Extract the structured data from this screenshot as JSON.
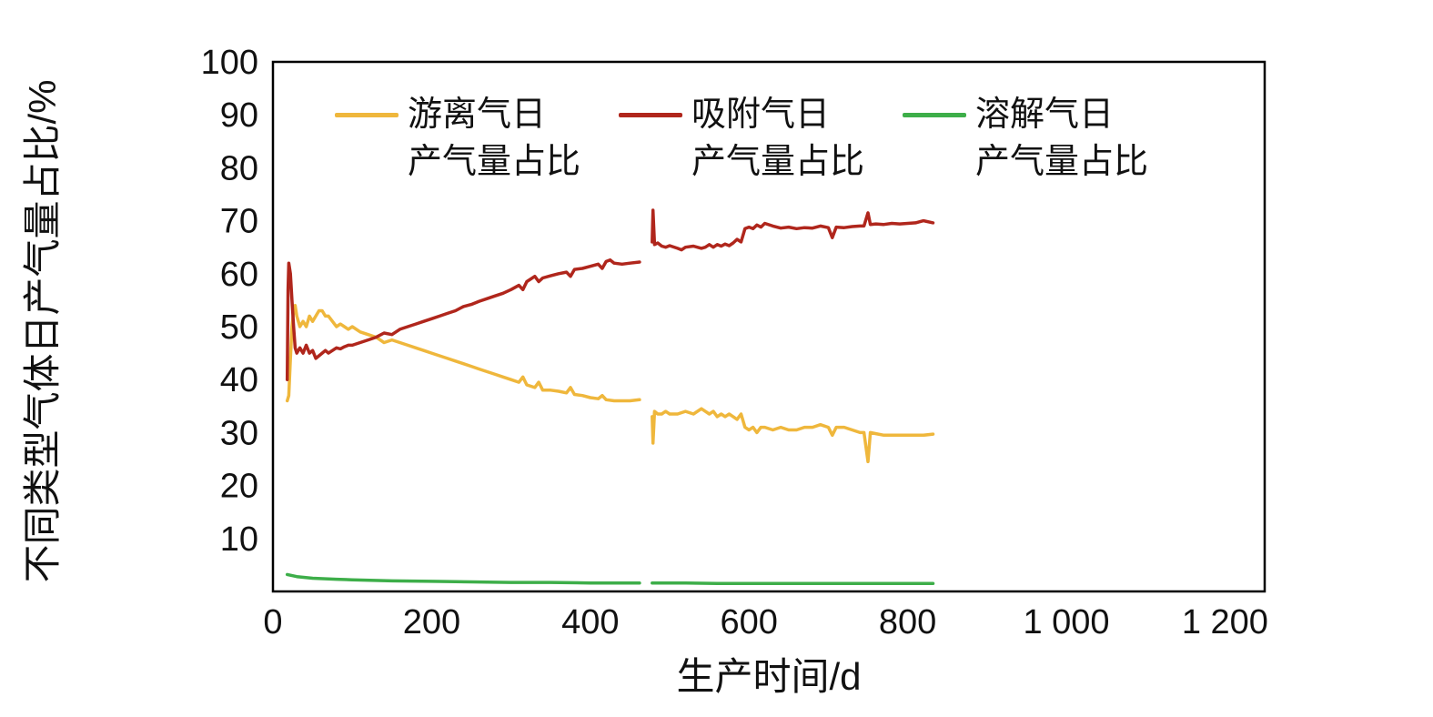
{
  "figure": {
    "background": "#ffffff",
    "text_color": "#111111",
    "axis_color": "#000000"
  },
  "chart_data": {
    "type": "line",
    "title": "",
    "xlabel": "生产时间/d",
    "ylabel": "不同类型气体日产气量占比/%",
    "xlim": [
      0,
      1250
    ],
    "ylim": [
      0,
      100
    ],
    "grid": false,
    "legend_position": "top-inside",
    "x_ticks": [
      0,
      200,
      400,
      600,
      800,
      1000,
      1200
    ],
    "x_tick_labels": [
      "0",
      "200",
      "400",
      "600",
      "800",
      "1 000",
      "1 200"
    ],
    "y_ticks": [
      10,
      20,
      30,
      40,
      50,
      60,
      70,
      80,
      90,
      100
    ],
    "y_tick_labels": [
      "10",
      "20",
      "30",
      "40",
      "50",
      "60",
      "70",
      "80",
      "90",
      "100"
    ],
    "series": [
      {
        "key": "free-gas",
        "name": "游离气日\n产气量占比",
        "color": "#EFB73C",
        "segments": [
          [
            [
              18,
              36
            ],
            [
              20,
              37
            ],
            [
              22,
              44
            ],
            [
              24,
              50
            ],
            [
              26,
              53
            ],
            [
              28,
              54
            ],
            [
              30,
              52
            ],
            [
              34,
              50
            ],
            [
              38,
              51
            ],
            [
              42,
              50
            ],
            [
              46,
              52
            ],
            [
              50,
              51
            ],
            [
              54,
              52
            ],
            [
              58,
              53
            ],
            [
              62,
              53
            ],
            [
              66,
              52
            ],
            [
              70,
              52
            ],
            [
              75,
              51
            ],
            [
              80,
              50
            ],
            [
              85,
              50.5
            ],
            [
              90,
              50
            ],
            [
              95,
              49.5
            ],
            [
              100,
              50
            ],
            [
              110,
              49
            ],
            [
              120,
              48.5
            ],
            [
              130,
              48
            ],
            [
              140,
              47
            ],
            [
              150,
              47.5
            ],
            [
              160,
              47
            ],
            [
              170,
              46.5
            ],
            [
              180,
              46
            ],
            [
              190,
              45.5
            ],
            [
              200,
              45
            ],
            [
              210,
              44.5
            ],
            [
              220,
              44
            ],
            [
              230,
              43.5
            ],
            [
              240,
              43
            ],
            [
              250,
              42.5
            ],
            [
              260,
              42
            ],
            [
              270,
              41.5
            ],
            [
              280,
              41
            ],
            [
              290,
              40.5
            ],
            [
              300,
              40
            ],
            [
              310,
              39.5
            ],
            [
              315,
              40.5
            ],
            [
              320,
              39
            ],
            [
              330,
              38.5
            ],
            [
              335,
              39.5
            ],
            [
              340,
              38
            ],
            [
              350,
              38
            ],
            [
              360,
              37.8
            ],
            [
              370,
              37.5
            ],
            [
              375,
              38.5
            ],
            [
              380,
              37.2
            ],
            [
              390,
              37
            ],
            [
              400,
              36.6
            ],
            [
              410,
              36.4
            ],
            [
              415,
              37
            ],
            [
              420,
              36.2
            ],
            [
              430,
              36
            ],
            [
              440,
              36
            ],
            [
              450,
              36
            ],
            [
              462,
              36.2
            ]
          ],
          [
            [
              478,
              33
            ],
            [
              479,
              28
            ],
            [
              481,
              34
            ],
            [
              485,
              33.5
            ],
            [
              490,
              33.5
            ],
            [
              495,
              34
            ],
            [
              500,
              33.5
            ],
            [
              510,
              33.5
            ],
            [
              520,
              34
            ],
            [
              530,
              33.5
            ],
            [
              540,
              34.5
            ],
            [
              545,
              34
            ],
            [
              550,
              33.5
            ],
            [
              555,
              34
            ],
            [
              560,
              33
            ],
            [
              565,
              33.5
            ],
            [
              570,
              33
            ],
            [
              575,
              33.5
            ],
            [
              580,
              33
            ],
            [
              585,
              32.5
            ],
            [
              590,
              33.5
            ],
            [
              595,
              31
            ],
            [
              600,
              30.5
            ],
            [
              605,
              31
            ],
            [
              610,
              30
            ],
            [
              615,
              31
            ],
            [
              620,
              31
            ],
            [
              630,
              30.5
            ],
            [
              640,
              31
            ],
            [
              650,
              30.5
            ],
            [
              660,
              30.5
            ],
            [
              670,
              31
            ],
            [
              680,
              31
            ],
            [
              690,
              31.5
            ],
            [
              700,
              31
            ],
            [
              705,
              29.5
            ],
            [
              710,
              31
            ],
            [
              720,
              31
            ],
            [
              730,
              30.5
            ],
            [
              740,
              30
            ],
            [
              745,
              30
            ],
            [
              750,
              24.5
            ],
            [
              753,
              30
            ],
            [
              760,
              29.8
            ],
            [
              770,
              29.5
            ],
            [
              780,
              29.5
            ],
            [
              790,
              29.5
            ],
            [
              800,
              29.5
            ],
            [
              810,
              29.5
            ],
            [
              820,
              29.5
            ],
            [
              832,
              29.7
            ]
          ]
        ]
      },
      {
        "key": "adsorbed-gas",
        "name": "吸附气日\n产气量占比",
        "color": "#B0261C",
        "segments": [
          [
            [
              18,
              40
            ],
            [
              19,
              57
            ],
            [
              20,
              62
            ],
            [
              22,
              60
            ],
            [
              24,
              55
            ],
            [
              26,
              50
            ],
            [
              28,
              46
            ],
            [
              30,
              45
            ],
            [
              34,
              46
            ],
            [
              38,
              45
            ],
            [
              42,
              46.5
            ],
            [
              46,
              45
            ],
            [
              50,
              45.5
            ],
            [
              54,
              44
            ],
            [
              58,
              44.5
            ],
            [
              62,
              45
            ],
            [
              66,
              45.5
            ],
            [
              70,
              45
            ],
            [
              75,
              45.5
            ],
            [
              80,
              46
            ],
            [
              85,
              45.8
            ],
            [
              90,
              46.2
            ],
            [
              95,
              46.5
            ],
            [
              100,
              46.5
            ],
            [
              110,
              47
            ],
            [
              120,
              47.5
            ],
            [
              130,
              48
            ],
            [
              140,
              48.8
            ],
            [
              150,
              48.5
            ],
            [
              160,
              49.5
            ],
            [
              170,
              50
            ],
            [
              180,
              50.5
            ],
            [
              190,
              51
            ],
            [
              200,
              51.5
            ],
            [
              210,
              52
            ],
            [
              220,
              52.5
            ],
            [
              230,
              53
            ],
            [
              240,
              53.8
            ],
            [
              250,
              54.2
            ],
            [
              260,
              54.8
            ],
            [
              270,
              55.3
            ],
            [
              280,
              55.8
            ],
            [
              290,
              56.3
            ],
            [
              300,
              57
            ],
            [
              310,
              57.8
            ],
            [
              315,
              57
            ],
            [
              320,
              58.5
            ],
            [
              330,
              59.5
            ],
            [
              335,
              58.5
            ],
            [
              340,
              59.2
            ],
            [
              350,
              59.6
            ],
            [
              360,
              60
            ],
            [
              370,
              60.3
            ],
            [
              375,
              59.5
            ],
            [
              380,
              60.8
            ],
            [
              390,
              61
            ],
            [
              400,
              61.4
            ],
            [
              410,
              61.8
            ],
            [
              415,
              61
            ],
            [
              420,
              62.3
            ],
            [
              425,
              62.6
            ],
            [
              430,
              62
            ],
            [
              440,
              61.8
            ],
            [
              450,
              62
            ],
            [
              462,
              62.2
            ]
          ],
          [
            [
              478,
              66
            ],
            [
              479,
              72
            ],
            [
              481,
              65.5
            ],
            [
              485,
              65.8
            ],
            [
              490,
              65.2
            ],
            [
              495,
              65
            ],
            [
              500,
              65.3
            ],
            [
              510,
              64.8
            ],
            [
              515,
              64.5
            ],
            [
              520,
              65
            ],
            [
              530,
              65.2
            ],
            [
              540,
              64.8
            ],
            [
              545,
              65
            ],
            [
              550,
              65.5
            ],
            [
              555,
              65
            ],
            [
              560,
              65.5
            ],
            [
              565,
              65.2
            ],
            [
              570,
              65.6
            ],
            [
              575,
              65.3
            ],
            [
              580,
              65.8
            ],
            [
              585,
              66.5
            ],
            [
              590,
              66
            ],
            [
              595,
              68.5
            ],
            [
              600,
              68.8
            ],
            [
              605,
              68.5
            ],
            [
              610,
              69.2
            ],
            [
              615,
              68.8
            ],
            [
              620,
              69.5
            ],
            [
              630,
              69
            ],
            [
              640,
              68.6
            ],
            [
              650,
              68.8
            ],
            [
              660,
              68.5
            ],
            [
              670,
              68.7
            ],
            [
              680,
              68.6
            ],
            [
              690,
              69
            ],
            [
              700,
              68.7
            ],
            [
              705,
              66.8
            ],
            [
              710,
              68.8
            ],
            [
              720,
              68.7
            ],
            [
              730,
              68.9
            ],
            [
              740,
              69
            ],
            [
              745,
              69
            ],
            [
              750,
              71.5
            ],
            [
              753,
              69.3
            ],
            [
              760,
              69.4
            ],
            [
              770,
              69.3
            ],
            [
              780,
              69.5
            ],
            [
              790,
              69.4
            ],
            [
              800,
              69.5
            ],
            [
              810,
              69.6
            ],
            [
              820,
              70
            ],
            [
              832,
              69.6
            ]
          ]
        ]
      },
      {
        "key": "dissolved-gas",
        "name": "溶解气日\n产气量占比",
        "color": "#3DAE49",
        "segments": [
          [
            [
              18,
              3.2
            ],
            [
              30,
              2.8
            ],
            [
              50,
              2.5
            ],
            [
              80,
              2.3
            ],
            [
              100,
              2.2
            ],
            [
              150,
              2.0
            ],
            [
              200,
              1.9
            ],
            [
              250,
              1.8
            ],
            [
              300,
              1.7
            ],
            [
              350,
              1.7
            ],
            [
              400,
              1.6
            ],
            [
              462,
              1.6
            ]
          ],
          [
            [
              478,
              1.6
            ],
            [
              520,
              1.6
            ],
            [
              560,
              1.5
            ],
            [
              600,
              1.5
            ],
            [
              650,
              1.5
            ],
            [
              700,
              1.5
            ],
            [
              750,
              1.5
            ],
            [
              800,
              1.5
            ],
            [
              832,
              1.5
            ]
          ]
        ]
      }
    ]
  }
}
